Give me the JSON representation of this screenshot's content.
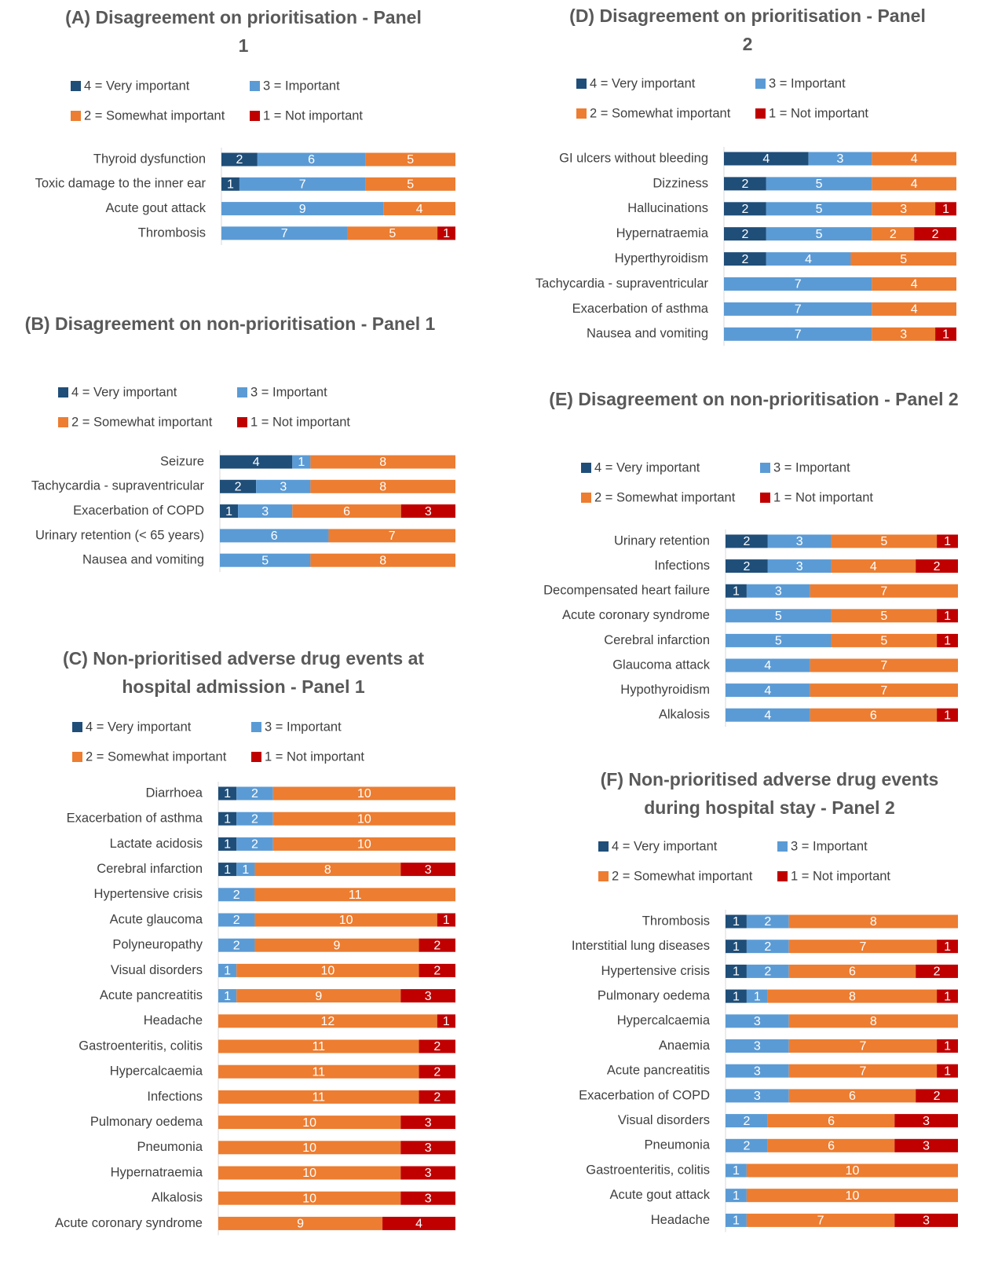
{
  "chart_data": [
    {
      "type": "bar",
      "title": "(A) Disagreement on prioritisation - Panel 1",
      "categories": [
        "Thyroid dysfunction",
        "Toxic damage to the inner ear",
        "Acute gout attack",
        "Thrombosis"
      ],
      "series": [
        {
          "name": "4 = Very important",
          "color": "#1f4e79",
          "values": [
            2,
            1,
            null,
            null
          ]
        },
        {
          "name": "3 = Important",
          "color": "#5b9bd5",
          "values": [
            6,
            7,
            9,
            7
          ]
        },
        {
          "name": "2 = Somewhat important",
          "color": "#ed7d31",
          "values": [
            5,
            5,
            4,
            5
          ]
        },
        {
          "name": "1 = Not important",
          "color": "#c00000",
          "values": [
            null,
            null,
            null,
            1
          ]
        }
      ]
    },
    {
      "type": "bar",
      "title": "(B) Disagreement on non-prioritisation - Panel 1",
      "categories": [
        "Seizure",
        "Tachycardia - supraventricular",
        "Exacerbation of COPD",
        "Urinary retention (< 65 years)",
        "Nausea and vomiting"
      ],
      "series": [
        {
          "name": "4 = Very important",
          "color": "#1f4e79",
          "values": [
            4,
            2,
            1,
            null,
            null
          ]
        },
        {
          "name": "3 = Important",
          "color": "#5b9bd5",
          "values": [
            1,
            3,
            3,
            6,
            5
          ]
        },
        {
          "name": "2 = Somewhat important",
          "color": "#ed7d31",
          "values": [
            8,
            8,
            6,
            7,
            8
          ]
        },
        {
          "name": "1 = Not important",
          "color": "#c00000",
          "values": [
            null,
            null,
            3,
            null,
            null
          ]
        }
      ]
    },
    {
      "type": "bar",
      "title": "(C) Non-prioritised adverse drug events at hospital admission - Panel 1",
      "categories": [
        "Diarrhoea",
        "Exacerbation of asthma",
        "Lactate acidosis",
        "Cerebral infarction",
        "Hypertensive crisis",
        "Acute glaucoma",
        "Polyneuropathy",
        "Visual disorders",
        "Acute pancreatitis",
        "Headache",
        "Gastroenteritis, colitis",
        "Hypercalcaemia",
        "Infections",
        "Pulmonary oedema",
        "Pneumonia",
        "Hypernatraemia",
        "Alkalosis",
        "Acute coronary syndrome"
      ],
      "series": [
        {
          "name": "4 = Very important",
          "color": "#1f4e79",
          "values": [
            1,
            1,
            1,
            1,
            null,
            null,
            null,
            null,
            null,
            null,
            null,
            null,
            null,
            null,
            null,
            null,
            null,
            null
          ]
        },
        {
          "name": "3 = Important",
          "color": "#5b9bd5",
          "values": [
            2,
            2,
            2,
            1,
            2,
            2,
            2,
            1,
            1,
            null,
            null,
            null,
            null,
            null,
            null,
            null,
            null,
            null
          ]
        },
        {
          "name": "2 = Somewhat important",
          "color": "#ed7d31",
          "values": [
            10,
            10,
            10,
            8,
            11,
            10,
            9,
            10,
            9,
            12,
            11,
            11,
            11,
            10,
            10,
            10,
            10,
            9
          ]
        },
        {
          "name": "1 = Not important",
          "color": "#c00000",
          "values": [
            null,
            null,
            null,
            3,
            null,
            1,
            2,
            2,
            3,
            1,
            2,
            2,
            2,
            3,
            3,
            3,
            3,
            4
          ]
        }
      ]
    },
    {
      "type": "bar",
      "title": "(D) Disagreement on prioritisation - Panel 2",
      "categories": [
        "GI ulcers without bleeding",
        "Dizziness",
        "Hallucinations",
        "Hypernatraemia",
        "Hyperthyroidism",
        "Tachycardia - supraventricular",
        "Exacerbation of asthma",
        "Nausea and vomiting"
      ],
      "series": [
        {
          "name": "4 = Very important",
          "color": "#1f4e79",
          "values": [
            4,
            2,
            2,
            2,
            2,
            null,
            null,
            null
          ]
        },
        {
          "name": "3 = Important",
          "color": "#5b9bd5",
          "values": [
            3,
            5,
            5,
            5,
            4,
            7,
            7,
            7
          ]
        },
        {
          "name": "2 = Somewhat important",
          "color": "#ed7d31",
          "values": [
            4,
            4,
            3,
            2,
            5,
            4,
            4,
            3
          ]
        },
        {
          "name": "1 = Not important",
          "color": "#c00000",
          "values": [
            null,
            null,
            1,
            2,
            null,
            null,
            null,
            1
          ]
        }
      ]
    },
    {
      "type": "bar",
      "title": "(E) Disagreement on non-prioritisation - Panel 2",
      "categories": [
        "Urinary retention",
        "Infections",
        "Decompensated heart failure",
        "Acute coronary syndrome",
        "Cerebral infarction",
        "Glaucoma attack",
        "Hypothyroidism",
        "Alkalosis"
      ],
      "series": [
        {
          "name": "4 = Very important",
          "color": "#1f4e79",
          "values": [
            2,
            2,
            1,
            null,
            null,
            null,
            null,
            null
          ]
        },
        {
          "name": "3 = Important",
          "color": "#5b9bd5",
          "values": [
            3,
            3,
            3,
            5,
            5,
            4,
            4,
            4
          ]
        },
        {
          "name": "2 = Somewhat important",
          "color": "#ed7d31",
          "values": [
            5,
            4,
            7,
            5,
            5,
            7,
            7,
            6
          ]
        },
        {
          "name": "1 = Not important",
          "color": "#c00000",
          "values": [
            1,
            2,
            null,
            1,
            1,
            null,
            null,
            1
          ]
        }
      ]
    },
    {
      "type": "bar",
      "title": "(F) Non-prioritised adverse drug events during hospital stay - Panel 2",
      "categories": [
        "Thrombosis",
        "Interstitial lung diseases",
        "Hypertensive crisis",
        "Pulmonary oedema",
        "Hypercalcaemia",
        "Anaemia",
        "Acute pancreatitis",
        "Exacerbation of COPD",
        "Visual disorders",
        "Pneumonia",
        "Gastroenteritis, colitis",
        "Acute gout attack",
        "Headache"
      ],
      "series": [
        {
          "name": "4 = Very important",
          "color": "#1f4e79",
          "values": [
            1,
            1,
            1,
            1,
            null,
            null,
            null,
            null,
            null,
            null,
            null,
            null,
            null
          ]
        },
        {
          "name": "3 = Important",
          "color": "#5b9bd5",
          "values": [
            2,
            2,
            2,
            1,
            3,
            3,
            3,
            3,
            2,
            2,
            1,
            1,
            1
          ]
        },
        {
          "name": "2 = Somewhat important",
          "color": "#ed7d31",
          "values": [
            8,
            7,
            6,
            8,
            8,
            7,
            7,
            6,
            6,
            6,
            10,
            10,
            7
          ]
        },
        {
          "name": "1 = Not important",
          "color": "#c00000",
          "values": [
            null,
            1,
            2,
            1,
            null,
            1,
            1,
            2,
            3,
            3,
            null,
            null,
            3
          ]
        }
      ]
    }
  ]
}
